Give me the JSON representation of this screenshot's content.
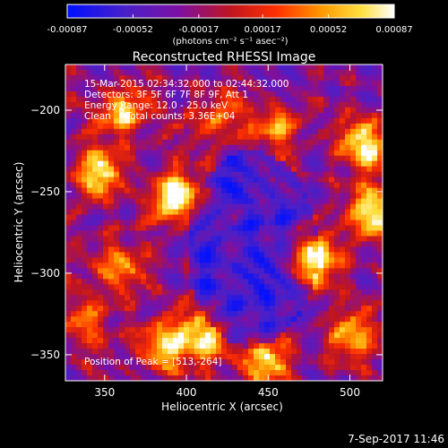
{
  "chart_data": {
    "type": "heatmap",
    "title": "Reconstructed RHESSI Image",
    "xlabel": "Heliocentric X (arcsec)",
    "ylabel": "Heliocentric Y (arcsec)",
    "xlim": [
      326,
      520
    ],
    "ylim": [
      -366,
      -172
    ],
    "x_ticks": [
      350,
      400,
      450,
      500
    ],
    "y_ticks": [
      -200,
      -250,
      -300,
      -350
    ],
    "colorbar": {
      "min": -0.00087,
      "max": 0.00087,
      "tick_values": [
        -0.00087,
        -0.00052,
        -0.00017,
        0.00017,
        0.00052,
        0.00087
      ],
      "tick_labels": [
        "-0.00087",
        "-0.00052",
        "-0.00017",
        "0.00017",
        "0.00052",
        "0.00087"
      ],
      "unit_label": "(photons cm⁻² s⁻¹ asec⁻²)"
    },
    "colormap_stops": [
      "#0010ff",
      "#4f0fb0",
      "#7a10a0",
      "#b01030",
      "#e02010",
      "#ff7000",
      "#ffd000",
      "#fff6a0",
      "#ffffff"
    ],
    "sources": [
      {
        "x": 393,
        "y": -254,
        "intensity": 1.0
      },
      {
        "x": 477,
        "y": -292,
        "intensity": 1.0
      },
      {
        "x": 513,
        "y": -264,
        "intensity": 0.95
      },
      {
        "x": 510,
        "y": -222,
        "intensity": 0.75
      },
      {
        "x": 360,
        "y": -200,
        "intensity": 0.7
      },
      {
        "x": 356,
        "y": -296,
        "intensity": 0.6
      },
      {
        "x": 385,
        "y": -345,
        "intensity": 0.75
      },
      {
        "x": 412,
        "y": -340,
        "intensity": 0.7
      },
      {
        "x": 448,
        "y": -355,
        "intensity": 0.6
      },
      {
        "x": 500,
        "y": -340,
        "intensity": 0.6
      },
      {
        "x": 455,
        "y": -210,
        "intensity": 0.55
      },
      {
        "x": 345,
        "y": -238,
        "intensity": 0.7
      },
      {
        "x": 420,
        "y": -205,
        "intensity": 0.5
      },
      {
        "x": 335,
        "y": -330,
        "intensity": 0.5
      }
    ],
    "peak_position": [
      513,
      -264
    ],
    "grid": false
  },
  "annotations": {
    "time_range": "15-Mar-2015 02:34:32.000 to 02:44:32.000",
    "detectors": "Detectors: 3F 5F 6F 7F 8F 9F, Att 1",
    "energy_range": "Energy Range: 12.0 - 25.0 keV",
    "clean_line": "Clean     Total counts: 3.36E+04",
    "peak_position": "Position of Peak = [513,-264]"
  },
  "footer": {
    "timestamp": "7-Sep-2017 11:46"
  }
}
